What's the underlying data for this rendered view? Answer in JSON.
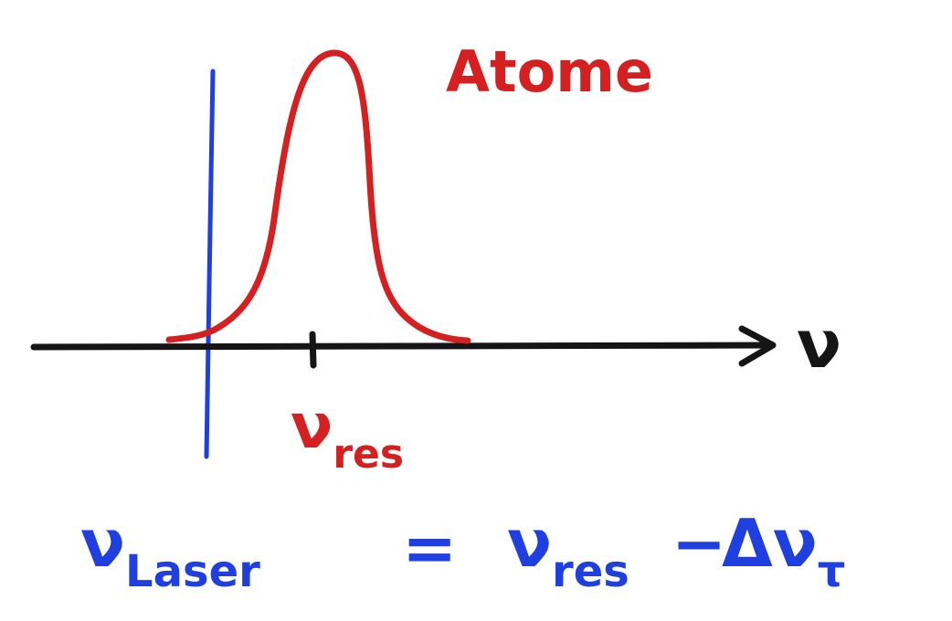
{
  "curve_label": "Atome",
  "axis_label": "ν",
  "marker_label": {
    "symbol": "ν",
    "subscript": "res"
  },
  "equation": {
    "lhs": {
      "symbol": "ν",
      "subscript": "Laser"
    },
    "operator": "=",
    "rhs_1": {
      "symbol": "ν",
      "subscript": "res"
    },
    "minus": "−",
    "rhs_2": {
      "prefix": "Δ",
      "symbol": "ν",
      "subscript": "τ"
    }
  }
}
